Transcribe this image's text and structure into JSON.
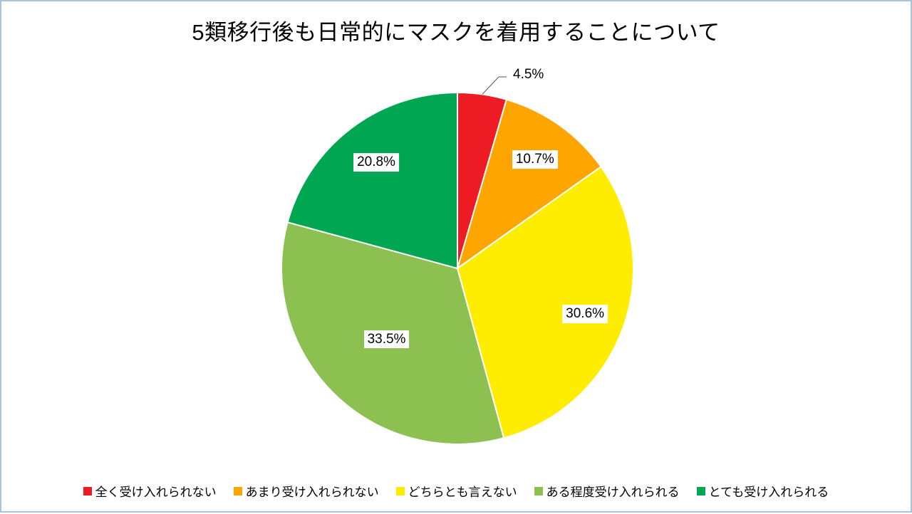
{
  "page": {
    "background": "#ffffff",
    "frame_border_color": "#a9c4da"
  },
  "chart_data": {
    "type": "pie",
    "title": "5類移行後も日常的にマスクを着用することについて",
    "categories": [
      "全く受け入れられない",
      "あまり受け入れられない",
      "どちらとも言えない",
      "ある程度受け入れられる",
      "とても受け入れられる"
    ],
    "values": [
      4.5,
      10.7,
      30.6,
      33.5,
      20.8
    ],
    "data_labels": [
      "4.5%",
      "10.7%",
      "30.6%",
      "33.5%",
      "20.8%"
    ],
    "colors": [
      "#ed1c24",
      "#ffa500",
      "#ffed00",
      "#8cc152",
      "#00a651"
    ],
    "start_angle_deg": 0,
    "direction": "clockwise",
    "slice_border_color": "#ffffff",
    "label_background": "#ffffff",
    "outside_label_index": 0,
    "legend_position": "bottom"
  }
}
